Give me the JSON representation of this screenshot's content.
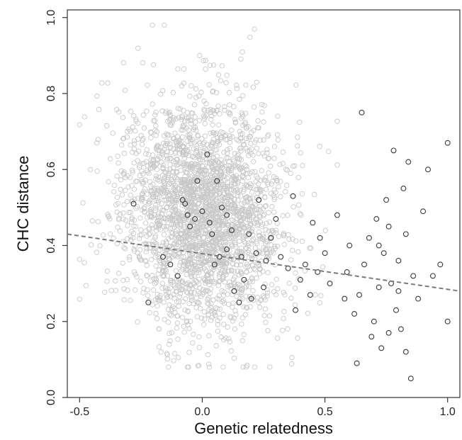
{
  "chart_data": {
    "type": "scatter",
    "xlabel": "Genetic relatedness",
    "ylabel": "CHC distance",
    "xlim": [
      -0.55,
      1.05
    ],
    "ylim": [
      0.0,
      1.02
    ],
    "x_ticks": [
      -0.5,
      0.0,
      0.5,
      1.0
    ],
    "x_tick_labels": [
      "-0.5",
      "0.0",
      "0.5",
      "1.0"
    ],
    "y_ticks": [
      0.0,
      0.2,
      0.4,
      0.6,
      0.8,
      1.0
    ],
    "y_tick_labels": [
      "0.0",
      "0.2",
      "0.4",
      "0.6",
      "0.8",
      "1.0"
    ],
    "grid": false,
    "legend": "none",
    "series": [
      {
        "color": "#c8c8c8",
        "marker": "open-circle",
        "distribution": {
          "n": 2600,
          "x_mean": 0.0,
          "x_sd": 0.16,
          "x_min": -0.5,
          "x_max": 0.55,
          "y_mean": 0.48,
          "y_sd": 0.15,
          "y_min": 0.08,
          "y_max": 0.98,
          "y_slope_vs_x": -0.1
        }
      },
      {
        "color": "#3a3a3a",
        "marker": "open-circle",
        "points": [
          [
            -0.28,
            0.51
          ],
          [
            -0.22,
            0.25
          ],
          [
            -0.16,
            0.37
          ],
          [
            -0.13,
            0.35
          ],
          [
            -0.1,
            0.32
          ],
          [
            -0.08,
            0.52
          ],
          [
            -0.07,
            0.51
          ],
          [
            -0.06,
            0.48
          ],
          [
            -0.05,
            0.45
          ],
          [
            -0.03,
            0.47
          ],
          [
            -0.02,
            0.57
          ],
          [
            0.0,
            0.49
          ],
          [
            0.02,
            0.64
          ],
          [
            0.03,
            0.46
          ],
          [
            0.04,
            0.43
          ],
          [
            0.05,
            0.35
          ],
          [
            0.06,
            0.57
          ],
          [
            0.07,
            0.37
          ],
          [
            0.08,
            0.5
          ],
          [
            0.1,
            0.39
          ],
          [
            0.1,
            0.48
          ],
          [
            0.12,
            0.44
          ],
          [
            0.13,
            0.28
          ],
          [
            0.15,
            0.25
          ],
          [
            0.16,
            0.37
          ],
          [
            0.17,
            0.31
          ],
          [
            0.19,
            0.43
          ],
          [
            0.2,
            0.26
          ],
          [
            0.22,
            0.38
          ],
          [
            0.23,
            0.52
          ],
          [
            0.25,
            0.29
          ],
          [
            0.26,
            0.36
          ],
          [
            0.28,
            0.42
          ],
          [
            0.3,
            0.47
          ],
          [
            0.32,
            0.37
          ],
          [
            0.35,
            0.34
          ],
          [
            0.37,
            0.53
          ],
          [
            0.38,
            0.23
          ],
          [
            0.4,
            0.31
          ],
          [
            0.42,
            0.35
          ],
          [
            0.44,
            0.27
          ],
          [
            0.45,
            0.46
          ],
          [
            0.47,
            0.33
          ],
          [
            0.48,
            0.42
          ],
          [
            0.5,
            0.38
          ],
          [
            0.52,
            0.3
          ],
          [
            0.55,
            0.48
          ],
          [
            0.58,
            0.26
          ],
          [
            0.6,
            0.4
          ],
          [
            0.62,
            0.22
          ],
          [
            0.63,
            0.09
          ],
          [
            0.65,
            0.75
          ],
          [
            0.66,
            0.35
          ],
          [
            0.68,
            0.42
          ],
          [
            0.7,
            0.2
          ],
          [
            0.71,
            0.47
          ],
          [
            0.72,
            0.29
          ],
          [
            0.73,
            0.13
          ],
          [
            0.74,
            0.38
          ],
          [
            0.75,
            0.52
          ],
          [
            0.76,
            0.45
          ],
          [
            0.77,
            0.3
          ],
          [
            0.78,
            0.65
          ],
          [
            0.79,
            0.23
          ],
          [
            0.8,
            0.36
          ],
          [
            0.81,
            0.18
          ],
          [
            0.82,
            0.55
          ],
          [
            0.83,
            0.12
          ],
          [
            0.84,
            0.62
          ],
          [
            0.85,
            0.05
          ],
          [
            0.86,
            0.32
          ],
          [
            0.88,
            0.26
          ],
          [
            0.9,
            0.49
          ],
          [
            0.92,
            0.6
          ],
          [
            0.94,
            0.32
          ],
          [
            0.97,
            0.35
          ],
          [
            1.0,
            0.67
          ],
          [
            1.0,
            0.2
          ],
          [
            0.69,
            0.16
          ],
          [
            0.76,
            0.17
          ],
          [
            0.8,
            0.28
          ],
          [
            0.83,
            0.43
          ],
          [
            0.59,
            0.33
          ],
          [
            0.64,
            0.27
          ],
          [
            0.72,
            0.4
          ]
        ]
      }
    ],
    "trend_line": {
      "style": "dashed",
      "color": "#7a7a7a",
      "x": [
        -0.55,
        1.05
      ],
      "y": [
        0.43,
        0.28
      ]
    }
  }
}
